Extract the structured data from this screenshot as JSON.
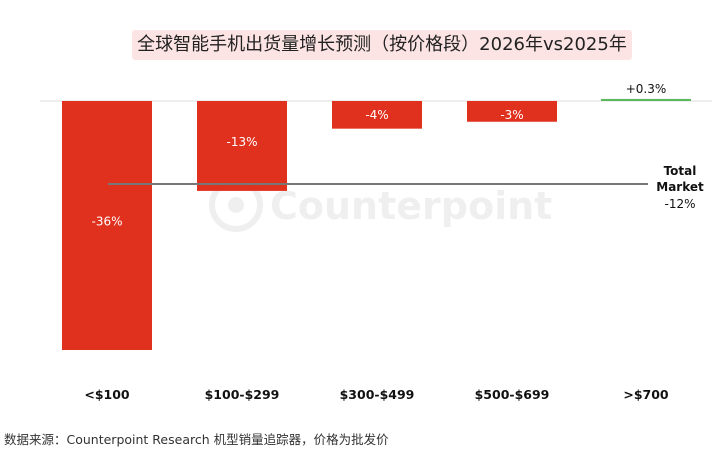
{
  "chart_data": {
    "type": "bar",
    "title": "全球智能手机出货量增长预测（按价格段）2026年vs2025年",
    "categories": [
      "<$100",
      "$100-$299",
      "$300-$499",
      "$500-$699",
      ">$700"
    ],
    "values": [
      -36,
      -13,
      -4,
      -3,
      0.3
    ],
    "value_labels": [
      "-36%",
      "-13%",
      "-4%",
      "-3%",
      "+0.3%"
    ],
    "ylim": [
      -36,
      0.3
    ],
    "reference_line": {
      "label_line1": "Total",
      "label_line2": "Market",
      "value": -12,
      "value_label": "-12%"
    },
    "xlabel": "",
    "ylabel": "",
    "grid": false,
    "colors": {
      "negative": "#e0311f",
      "positive": "#5cb85c",
      "reference": "#777777",
      "zero_line": "#dddddd"
    }
  },
  "watermark": "Counterpoint",
  "source_note": "数据来源：Counterpoint Research 机型销量追踪器，价格为批发价"
}
